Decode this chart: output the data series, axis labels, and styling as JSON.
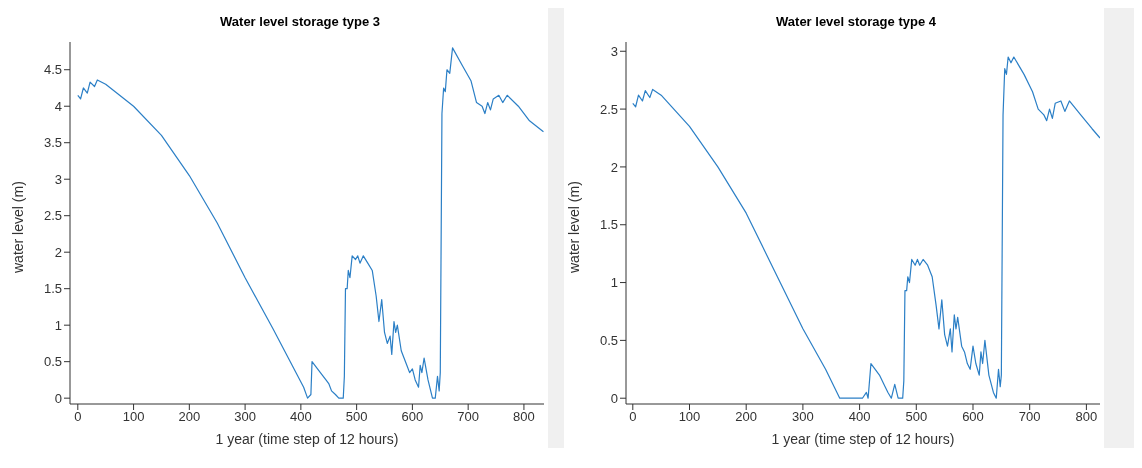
{
  "chart_data": [
    {
      "type": "line",
      "title": "Water level storage type 3",
      "xlabel": "1 year (time step of 12 hours)",
      "ylabel": "water level (m)",
      "xlim": [
        -14,
        836
      ],
      "xticks": [
        0,
        100,
        200,
        300,
        400,
        500,
        600,
        700,
        800
      ],
      "ylim": [
        -0.08,
        4.88
      ],
      "yticks": [
        0,
        0.5,
        1,
        1.5,
        2,
        2.5,
        3,
        3.5,
        4,
        4.5
      ],
      "grid": false,
      "legend": false,
      "marker": "none",
      "line_style": "solid",
      "series": [
        {
          "color": "#2b7fc6",
          "x": [
            0,
            5,
            10,
            17,
            22,
            30,
            35,
            50,
            100,
            150,
            200,
            250,
            300,
            350,
            405,
            412,
            418,
            420,
            435,
            445,
            450,
            455,
            462,
            468,
            476,
            478,
            480,
            483,
            485,
            488,
            492,
            498,
            502,
            506,
            512,
            520,
            528,
            535,
            540,
            545,
            550,
            555,
            560,
            563,
            567,
            570,
            573,
            580,
            585,
            590,
            595,
            600,
            605,
            611,
            614,
            617,
            621,
            628,
            636,
            641,
            645,
            648,
            650,
            653,
            656,
            659,
            662,
            667,
            672,
            690,
            705,
            715,
            725,
            730,
            735,
            740,
            745,
            755,
            762,
            770,
            790,
            810,
            835
          ],
          "values": [
            4.15,
            4.1,
            4.25,
            4.18,
            4.33,
            4.27,
            4.36,
            4.3,
            4.0,
            3.6,
            3.05,
            2.4,
            1.65,
            0.95,
            0.15,
            0,
            0.05,
            0.5,
            0.35,
            0.25,
            0.2,
            0.1,
            0.05,
            0,
            0,
            0.3,
            1.5,
            1.5,
            1.75,
            1.65,
            1.95,
            1.9,
            1.95,
            1.85,
            1.95,
            1.85,
            1.75,
            1.4,
            1.05,
            1.35,
            0.9,
            0.75,
            0.85,
            0.6,
            1.05,
            0.9,
            1.0,
            0.65,
            0.55,
            0.45,
            0.35,
            0.4,
            0.25,
            0.15,
            0.45,
            0.35,
            0.55,
            0.25,
            0,
            0,
            0.3,
            0.1,
            0.35,
            3.9,
            4.25,
            4.2,
            4.5,
            4.45,
            4.8,
            4.55,
            4.35,
            4.05,
            4.0,
            3.9,
            4.05,
            3.95,
            4.1,
            4.15,
            4.05,
            4.15,
            4.0,
            3.8,
            3.65
          ]
        }
      ]
    },
    {
      "type": "line",
      "title": "Water level storage type 4",
      "xlabel": "1 year (time step of 12 hours)",
      "ylabel": "water level (m)",
      "xlim": [
        -12,
        824
      ],
      "xticks": [
        0,
        100,
        200,
        300,
        400,
        500,
        600,
        700,
        800
      ],
      "ylim": [
        -0.05,
        3.08
      ],
      "yticks": [
        0,
        0.5,
        1,
        1.5,
        2,
        2.5,
        3
      ],
      "grid": false,
      "legend": false,
      "marker": "none",
      "line_style": "solid",
      "series": [
        {
          "color": "#2b7fc6",
          "x": [
            0,
            5,
            10,
            17,
            22,
            30,
            35,
            50,
            100,
            150,
            200,
            250,
            300,
            340,
            365,
            405,
            412,
            415,
            420,
            435,
            445,
            450,
            456,
            462,
            468,
            476,
            478,
            480,
            483,
            485,
            488,
            492,
            498,
            502,
            506,
            512,
            520,
            528,
            535,
            540,
            545,
            550,
            555,
            560,
            563,
            567,
            570,
            573,
            580,
            585,
            590,
            595,
            600,
            605,
            611,
            614,
            617,
            621,
            628,
            636,
            641,
            645,
            648,
            650,
            653,
            656,
            659,
            662,
            667,
            672,
            690,
            705,
            715,
            725,
            730,
            735,
            740,
            745,
            755,
            762,
            770,
            790,
            810,
            824
          ],
          "values": [
            2.55,
            2.52,
            2.62,
            2.57,
            2.66,
            2.6,
            2.67,
            2.62,
            2.35,
            2.0,
            1.6,
            1.1,
            0.6,
            0.25,
            0,
            0,
            0.05,
            0,
            0.3,
            0.2,
            0.1,
            0.05,
            0,
            0.12,
            0,
            0,
            0.15,
            0.93,
            0.93,
            1.05,
            1.0,
            1.2,
            1.15,
            1.2,
            1.15,
            1.2,
            1.15,
            1.05,
            0.8,
            0.6,
            0.85,
            0.55,
            0.45,
            0.6,
            0.4,
            0.72,
            0.6,
            0.7,
            0.45,
            0.4,
            0.3,
            0.25,
            0.45,
            0.3,
            0.2,
            0.4,
            0.3,
            0.5,
            0.2,
            0.05,
            0,
            0.25,
            0.1,
            0.2,
            2.45,
            2.85,
            2.8,
            2.95,
            2.9,
            2.95,
            2.8,
            2.65,
            2.5,
            2.45,
            2.4,
            2.5,
            2.42,
            2.55,
            2.57,
            2.48,
            2.57,
            2.45,
            2.33,
            2.25
          ]
        }
      ]
    }
  ]
}
